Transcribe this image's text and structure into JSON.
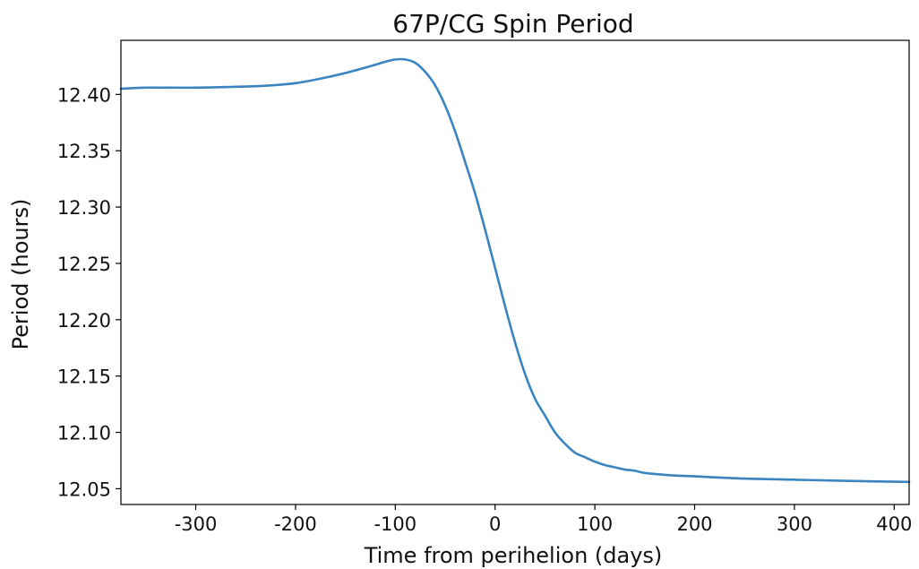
{
  "chart_data": {
    "type": "line",
    "title": "67P/CG Spin Period",
    "xlabel": "Time from perihelion (days)",
    "ylabel": "Period (hours)",
    "xlim": [
      -375,
      415
    ],
    "ylim": [
      12.036,
      12.448
    ],
    "xticks": [
      -300,
      -200,
      -100,
      0,
      100,
      200,
      300,
      400
    ],
    "xtick_labels": [
      "-300",
      "-200",
      "-100",
      "0",
      "100",
      "200",
      "300",
      "400"
    ],
    "yticks": [
      12.05,
      12.1,
      12.15,
      12.2,
      12.25,
      12.3,
      12.35,
      12.4
    ],
    "ytick_labels": [
      "12.05",
      "12.10",
      "12.15",
      "12.20",
      "12.25",
      "12.30",
      "12.35",
      "12.40"
    ],
    "grid": false,
    "line_color": "#3A85C1",
    "series": [
      {
        "x": [
          -375,
          -350,
          -300,
          -250,
          -225,
          -200,
          -175,
          -150,
          -125,
          -110,
          -100,
          -90,
          -80,
          -70,
          -60,
          -50,
          -40,
          -30,
          -20,
          -10,
          0,
          10,
          20,
          30,
          40,
          50,
          60,
          70,
          80,
          90,
          100,
          110,
          120,
          130,
          140,
          150,
          175,
          200,
          250,
          300,
          350,
          415
        ],
        "y": [
          12.405,
          12.406,
          12.406,
          12.407,
          12.408,
          12.41,
          12.414,
          12.419,
          12.425,
          12.429,
          12.431,
          12.431,
          12.428,
          12.42,
          12.408,
          12.39,
          12.367,
          12.34,
          12.312,
          12.28,
          12.246,
          12.212,
          12.18,
          12.152,
          12.13,
          12.115,
          12.1,
          12.09,
          12.082,
          12.078,
          12.074,
          12.071,
          12.069,
          12.067,
          12.066,
          12.064,
          12.062,
          12.061,
          12.059,
          12.058,
          12.057,
          12.056
        ]
      }
    ]
  }
}
